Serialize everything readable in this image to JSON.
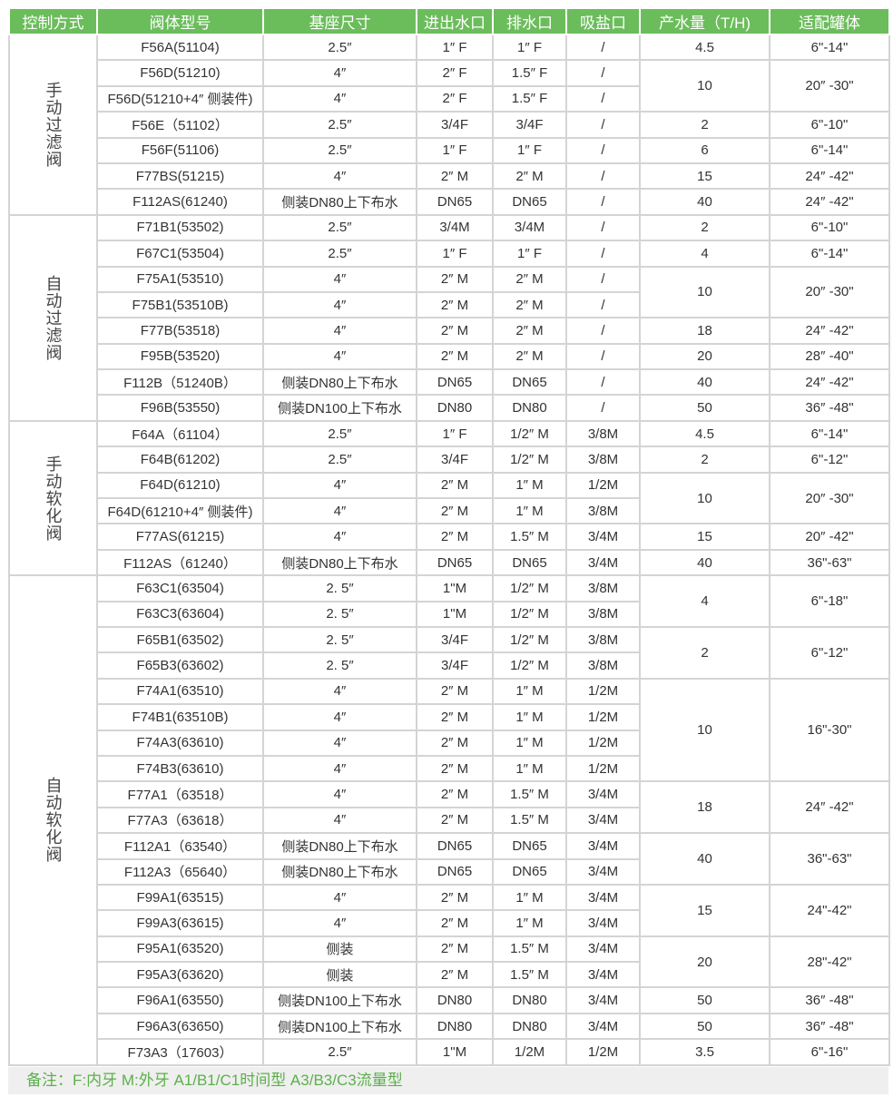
{
  "headers": [
    "控制方式",
    "阀体型号",
    "基座尺寸",
    "进出水口",
    "排水口",
    "吸盐口",
    "产水量（T/H)",
    "适配罐体"
  ],
  "groups": [
    {
      "label": "手动过滤阀",
      "rows": [
        {
          "model": "F56A(51104)",
          "base": "2.5″",
          "io": "1″ F",
          "drain": "1″ F",
          "salt": "/",
          "output": "4.5",
          "tank": "6\"-14\"",
          "span": 1
        },
        {
          "model": "F56D(51210)",
          "base": "4″",
          "io": "2″ F",
          "drain": "1.5″ F",
          "salt": "/",
          "output": "10",
          "tank": "20″ -30\"",
          "span": 2
        },
        {
          "model": "F56D(51210+4″ 侧装件)",
          "base": "4″",
          "io": "2″ F",
          "drain": "1.5″ F",
          "salt": "/"
        },
        {
          "model": "F56E（51102）",
          "base": "2.5″",
          "io": "3/4F",
          "drain": "3/4F",
          "salt": "/",
          "output": "2",
          "tank": "6\"-10\"",
          "span": 1
        },
        {
          "model": "F56F(51106)",
          "base": "2.5″",
          "io": "1″ F",
          "drain": "1″ F",
          "salt": "/",
          "output": "6",
          "tank": "6\"-14\"",
          "span": 1
        },
        {
          "model": "F77BS(51215)",
          "base": "4″",
          "io": "2″ M",
          "drain": "2″ M",
          "salt": "/",
          "output": "15",
          "tank": "24″ -42\"",
          "span": 1
        },
        {
          "model": "F112AS(61240)",
          "base": "侧装DN80上下布水",
          "io": "DN65",
          "drain": "DN65",
          "salt": "/",
          "output": "40",
          "tank": "24″ -42\"",
          "span": 1
        }
      ]
    },
    {
      "label": "自动过滤阀",
      "rows": [
        {
          "model": "F71B1(53502)",
          "base": "2.5″",
          "io": "3/4M",
          "drain": "3/4M",
          "salt": "/",
          "output": "2",
          "tank": "6\"-10\"",
          "span": 1
        },
        {
          "model": "F67C1(53504)",
          "base": "2.5″",
          "io": "1″ F",
          "drain": "1″ F",
          "salt": "/",
          "output": "4",
          "tank": "6\"-14\"",
          "span": 1
        },
        {
          "model": "F75A1(53510)",
          "base": "4″",
          "io": "2″ M",
          "drain": "2″ M",
          "salt": "/",
          "output": "10",
          "tank": "20″ -30\"",
          "span": 2
        },
        {
          "model": "F75B1(53510B)",
          "base": "4″",
          "io": "2″ M",
          "drain": "2″ M",
          "salt": "/"
        },
        {
          "model": "F77B(53518)",
          "base": "4″",
          "io": "2″ M",
          "drain": "2″ M",
          "salt": "/",
          "output": "18",
          "tank": "24″ -42\"",
          "span": 1
        },
        {
          "model": "F95B(53520)",
          "base": "4″",
          "io": "2″ M",
          "drain": "2″ M",
          "salt": "/",
          "output": "20",
          "tank": "28″ -40\"",
          "span": 1
        },
        {
          "model": "F112B（51240B）",
          "base": "侧装DN80上下布水",
          "io": "DN65",
          "drain": "DN65",
          "salt": "/",
          "output": "40",
          "tank": "24″ -42\"",
          "span": 1
        },
        {
          "model": "F96B(53550)",
          "base": "侧装DN100上下布水",
          "io": "DN80",
          "drain": "DN80",
          "salt": "/",
          "output": "50",
          "tank": "36″ -48\"",
          "span": 1
        }
      ]
    },
    {
      "label": "手动软化阀",
      "rows": [
        {
          "model": "F64A（61104）",
          "base": "2.5″",
          "io": "1″ F",
          "drain": "1/2″ M",
          "salt": "3/8M",
          "output": "4.5",
          "tank": "6\"-14\"",
          "span": 1
        },
        {
          "model": "F64B(61202)",
          "base": "2.5″",
          "io": "3/4F",
          "drain": "1/2″ M",
          "salt": "3/8M",
          "output": "2",
          "tank": "6\"-12\"",
          "span": 1
        },
        {
          "model": "F64D(61210)",
          "base": "4″",
          "io": "2″ M",
          "drain": "1″ M",
          "salt": "1/2M",
          "output": "10",
          "tank": "20″ -30\"",
          "span": 2
        },
        {
          "model": "F64D(61210+4″ 侧装件)",
          "base": "4″",
          "io": "2″ M",
          "drain": "1″ M",
          "salt": "3/8M"
        },
        {
          "model": "F77AS(61215)",
          "base": "4″",
          "io": "2″ M",
          "drain": "1.5″ M",
          "salt": "3/4M",
          "output": "15",
          "tank": "20″ -42\"",
          "span": 1
        },
        {
          "model": "F112AS（61240）",
          "base": "侧装DN80上下布水",
          "io": "DN65",
          "drain": "DN65",
          "salt": "3/4M",
          "output": "40",
          "tank": "36\"-63\"",
          "span": 1
        }
      ]
    },
    {
      "label": "自动软化阀",
      "rows": [
        {
          "model": "F63C1(63504)",
          "base": "2. 5″",
          "io": "1\"M",
          "drain": "1/2″ M",
          "salt": "3/8M",
          "output": "4",
          "tank": "6\"-18\"",
          "span": 2
        },
        {
          "model": "F63C3(63604)",
          "base": "2. 5″",
          "io": "1\"M",
          "drain": "1/2″ M",
          "salt": "3/8M"
        },
        {
          "model": "F65B1(63502)",
          "base": "2. 5″",
          "io": "3/4F",
          "drain": "1/2″ M",
          "salt": "3/8M",
          "output": "2",
          "tank": "6\"-12\"",
          "span": 2
        },
        {
          "model": "F65B3(63602)",
          "base": "2. 5″",
          "io": "3/4F",
          "drain": "1/2″ M",
          "salt": "3/8M"
        },
        {
          "model": "F74A1(63510)",
          "base": "4″",
          "io": "2″ M",
          "drain": "1″ M",
          "salt": "1/2M",
          "output": "10",
          "tank": "16\"-30\"",
          "span": 4
        },
        {
          "model": "F74B1(63510B)",
          "base": "4″",
          "io": "2″ M",
          "drain": "1″ M",
          "salt": "1/2M"
        },
        {
          "model": "F74A3(63610)",
          "base": "4″",
          "io": "2″ M",
          "drain": "1″ M",
          "salt": "1/2M"
        },
        {
          "model": "F74B3(63610)",
          "base": "4″",
          "io": "2″ M",
          "drain": "1″ M",
          "salt": "1/2M"
        },
        {
          "model": "F77A1（63518）",
          "base": "4″",
          "io": "2″ M",
          "drain": "1.5″ M",
          "salt": "3/4M",
          "output": "18",
          "tank": "24″ -42\"",
          "span": 2
        },
        {
          "model": "F77A3（63618）",
          "base": "4″",
          "io": "2″ M",
          "drain": "1.5″ M",
          "salt": "3/4M"
        },
        {
          "model": "F112A1（63540）",
          "base": "侧装DN80上下布水",
          "io": "DN65",
          "drain": "DN65",
          "salt": "3/4M",
          "output": "40",
          "tank": "36\"-63\"",
          "span": 2
        },
        {
          "model": "F112A3（65640）",
          "base": "侧装DN80上下布水",
          "io": "DN65",
          "drain": "DN65",
          "salt": "3/4M"
        },
        {
          "model": "F99A1(63515)",
          "base": "4″",
          "io": "2″ M",
          "drain": "1″ M",
          "salt": "3/4M",
          "output": "15",
          "tank": "24\"-42\"",
          "span": 2
        },
        {
          "model": "F99A3(63615)",
          "base": "4″",
          "io": "2″ M",
          "drain": "1″ M",
          "salt": "3/4M"
        },
        {
          "model": "F95A1(63520)",
          "base": "侧装",
          "io": "2″ M",
          "drain": "1.5″ M",
          "salt": "3/4M",
          "output": "20",
          "tank": "28\"-42\"",
          "span": 2
        },
        {
          "model": "F95A3(63620)",
          "base": "侧装",
          "io": "2″ M",
          "drain": "1.5″ M",
          "salt": "3/4M"
        },
        {
          "model": "F96A1(63550)",
          "base": "侧装DN100上下布水",
          "io": "DN80",
          "drain": "DN80",
          "salt": "3/4M",
          "output": "50",
          "tank": "36″ -48\"",
          "span": 1
        },
        {
          "model": "F96A3(63650)",
          "base": "侧装DN100上下布水",
          "io": "DN80",
          "drain": "DN80",
          "salt": "3/4M",
          "output": "50",
          "tank": "36″ -48\"",
          "span": 1
        },
        {
          "model": "F73A3（17603）",
          "base": "2.5″",
          "io": "1\"M",
          "drain": "1/2M",
          "salt": "1/2M",
          "output": "3.5",
          "tank": "6\"-16\"",
          "span": 1
        }
      ]
    }
  ],
  "note": "备注：F:内牙  M:外牙 A1/B1/C1时间型  A3/B3/C3流量型"
}
